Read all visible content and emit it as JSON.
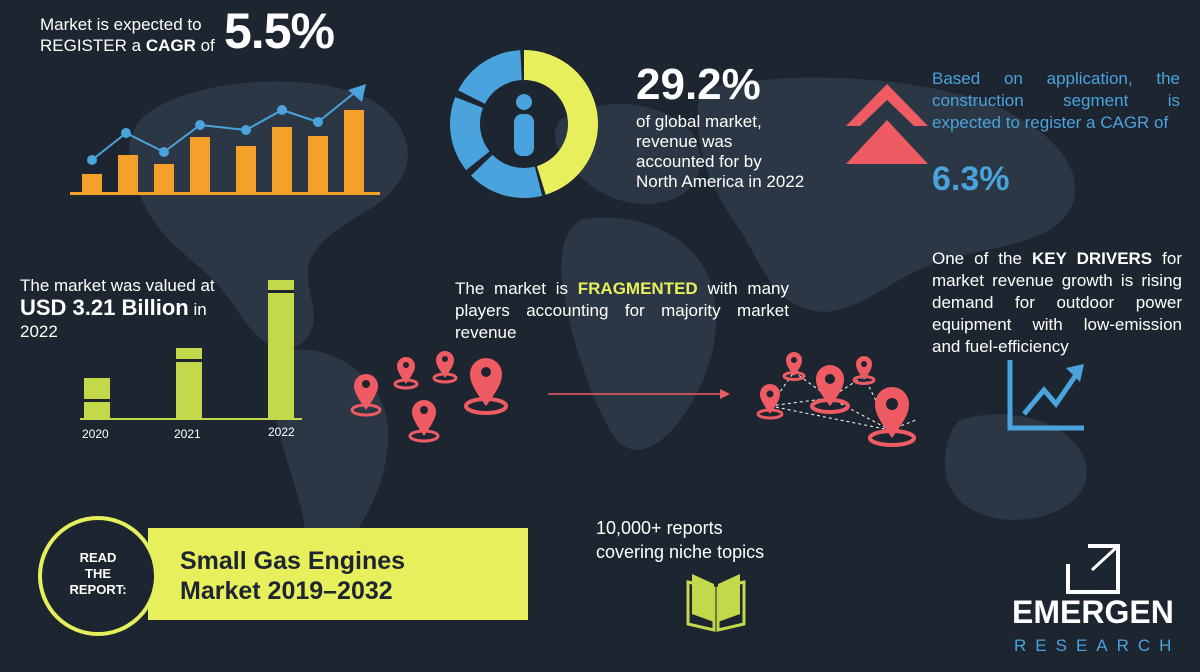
{
  "cagr": {
    "intro_line1": "Market is expected to",
    "intro_line2_prefix": "REGISTER a ",
    "intro_line2_bold": "CAGR",
    "intro_line2_suffix": " of",
    "value": "5.5%"
  },
  "north_america": {
    "value": "29.2%",
    "text": "of global market, revenue was accounted for by North America in 2022",
    "share": 0.292
  },
  "application": {
    "text": "Based on application, the construction segment is expected to register a CAGR of",
    "value": "6.3%"
  },
  "market_value": {
    "prefix": "The market was valued at",
    "amount": "USD 3.21 Billion",
    "in": " in",
    "year": "2022"
  },
  "value_chart": {
    "years": [
      "2020",
      "2021",
      "2022"
    ]
  },
  "fragmented": {
    "prefix": "The market is ",
    "bold": "FRAGMENTED",
    "suffix": " with many players accounting for majority market revenue"
  },
  "drivers": {
    "prefix": "One of the ",
    "bold": "KEY DRIVERS",
    "suffix": " for market revenue growth is rising demand for outdoor power equipment with low-emission and fuel-efficiency"
  },
  "banner": {
    "read_line1": "READ",
    "read_line2": "THE",
    "read_line3": "REPORT:",
    "title_line1": "Small Gas Engines",
    "title_line2": "Market 2019–2032"
  },
  "reports": {
    "line1": "10,000+ reports",
    "line2": "covering niche topics"
  },
  "logo": {
    "name": "EMERGEN",
    "sub": "RESEARCH"
  },
  "colors": {
    "background": "#1c2530",
    "accent_yellow": "#e8ef5c",
    "accent_blue": "#4aa3dc",
    "accent_red": "#ef5b63",
    "accent_orange": "#f6a02c",
    "accent_green": "#c3d84a"
  }
}
